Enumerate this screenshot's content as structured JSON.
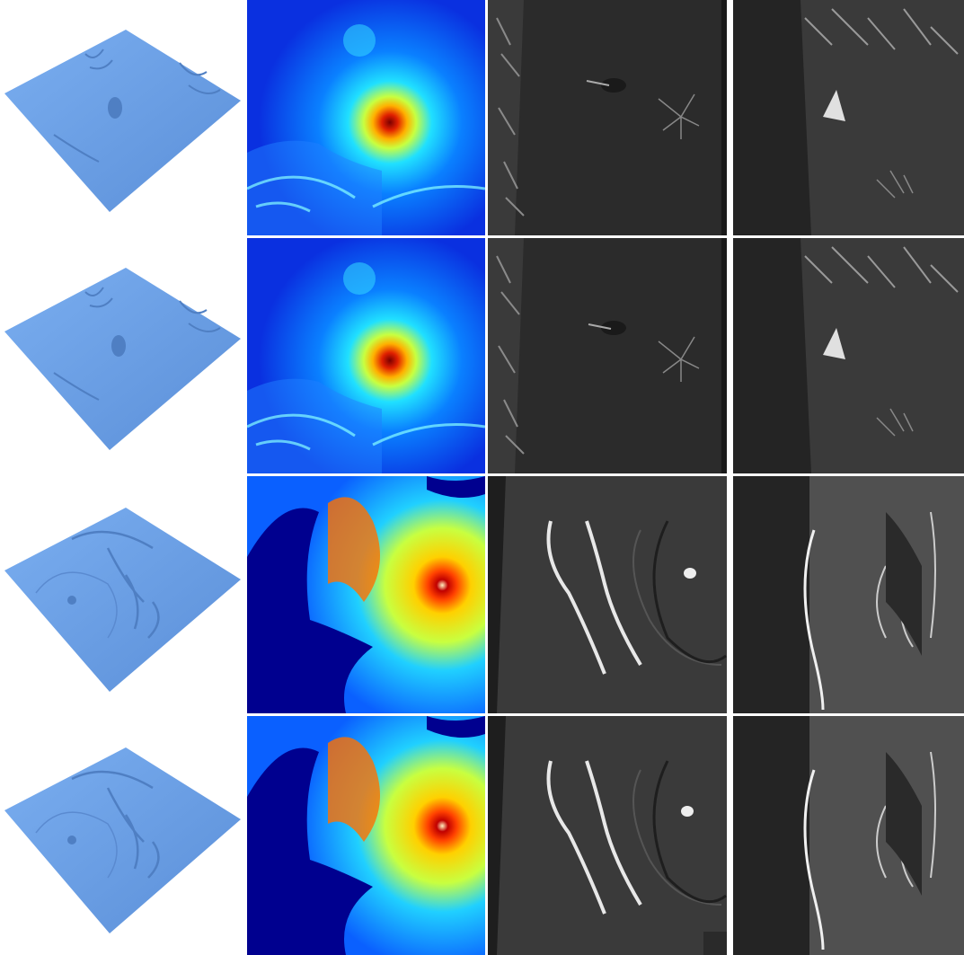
{
  "figure": {
    "columns": [
      "terrain-3d",
      "elevation-map",
      "sar-view-1",
      "sar-view-2"
    ],
    "rows": [
      {
        "id": "row-1",
        "scene": "volcano-a"
      },
      {
        "id": "row-2",
        "scene": "volcano-a"
      },
      {
        "id": "row-3",
        "scene": "caldera-b"
      },
      {
        "id": "row-4",
        "scene": "caldera-b"
      }
    ],
    "colors": {
      "terrain": "#6a9fe6",
      "jet_low": "#00008f",
      "jet_high": "#8b0000",
      "sar_bg": "#2b2b2b",
      "sar_flat": "#242424"
    }
  }
}
